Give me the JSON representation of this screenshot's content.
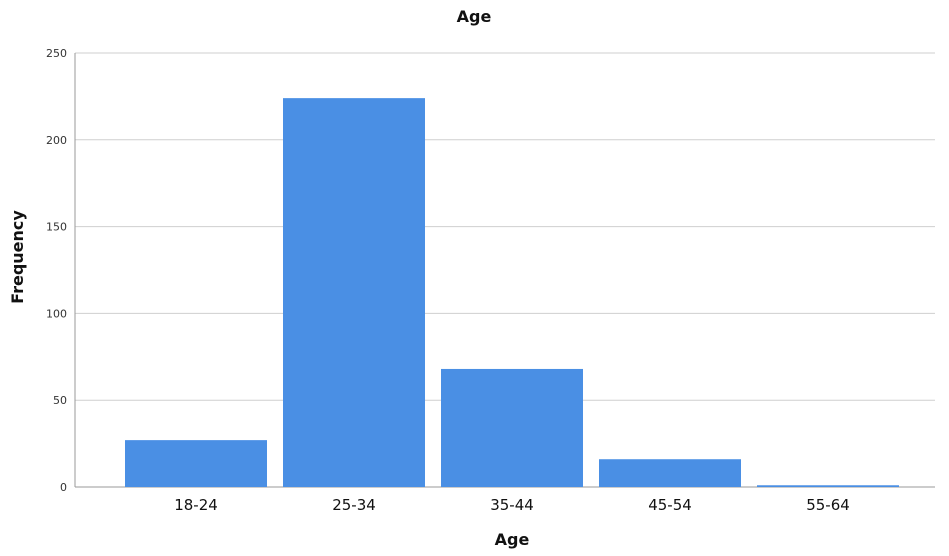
{
  "chart_data": {
    "type": "bar",
    "title": "Age",
    "xlabel": "Age",
    "ylabel": "Frequency",
    "categories": [
      "18-24",
      "25-34",
      "35-44",
      "45-54",
      "55-64"
    ],
    "values": [
      27,
      224,
      68,
      16,
      1
    ],
    "ylim": [
      0,
      250
    ],
    "yticks": [
      0,
      50,
      100,
      150,
      200,
      250
    ],
    "grid": true,
    "bar_color": "#4a8fe4"
  }
}
